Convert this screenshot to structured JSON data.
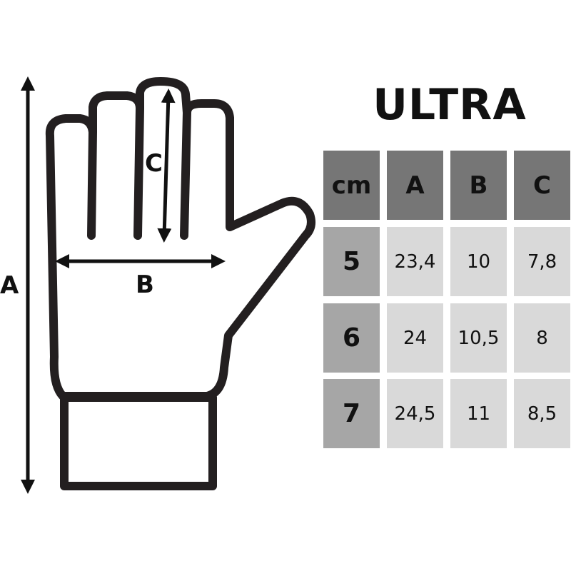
{
  "title": "ULTRA",
  "diagram": {
    "labels": {
      "a": "A",
      "b": "B",
      "c": "C"
    }
  },
  "table": {
    "headers": [
      "cm",
      "A",
      "B",
      "C"
    ],
    "rows": [
      {
        "size": "5",
        "values": [
          "23,4",
          "10",
          "7,8"
        ]
      },
      {
        "size": "6",
        "values": [
          "24",
          "10,5",
          "8"
        ]
      },
      {
        "size": "7",
        "values": [
          "24,5",
          "11",
          "8,5"
        ]
      }
    ]
  },
  "colors": {
    "header": "#767676",
    "size_column": "#a6a6a6",
    "cells": "#d9d9d9",
    "outline": "#231f20"
  }
}
